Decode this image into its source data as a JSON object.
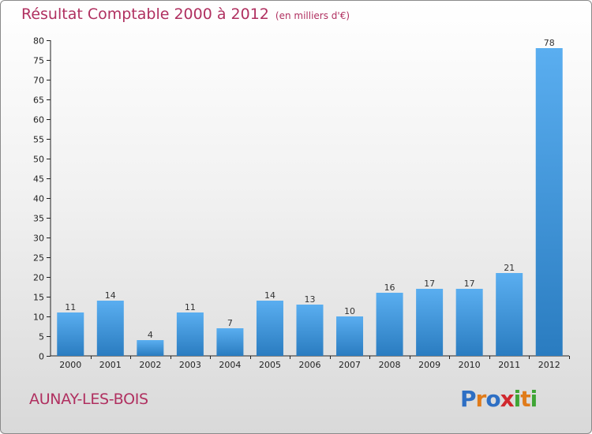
{
  "header": {
    "title": "Résultat Comptable 2000 à 2012",
    "subtitle": "(en milliers d'€)"
  },
  "footer": {
    "town": "AUNAY-LES-BOIS",
    "logo_letters": [
      "P",
      "r",
      "o",
      "x",
      "i",
      "t",
      "i"
    ]
  },
  "colors": {
    "title": "#b03060",
    "bar_light": "#5aaef0",
    "bar_dark": "#2a7cc0",
    "logo": [
      "#2d6fc4",
      "#e07b1a",
      "#2d6fc4",
      "#d0282e",
      "#3fa535",
      "#e07b1a",
      "#3fa535"
    ]
  },
  "chart_data": {
    "type": "bar",
    "title": "Résultat Comptable 2000 à 2012",
    "categories": [
      "2000",
      "2001",
      "2002",
      "2003",
      "2004",
      "2005",
      "2006",
      "2007",
      "2008",
      "2009",
      "2010",
      "2011",
      "2012"
    ],
    "values": [
      11,
      14,
      4,
      11,
      7,
      14,
      13,
      10,
      16,
      17,
      17,
      21,
      78
    ],
    "ylim": [
      0,
      80
    ],
    "yticks": [
      0,
      5,
      10,
      15,
      20,
      25,
      30,
      35,
      40,
      45,
      50,
      55,
      60,
      65,
      70,
      75,
      80
    ],
    "grid": false,
    "data_labels": true
  }
}
